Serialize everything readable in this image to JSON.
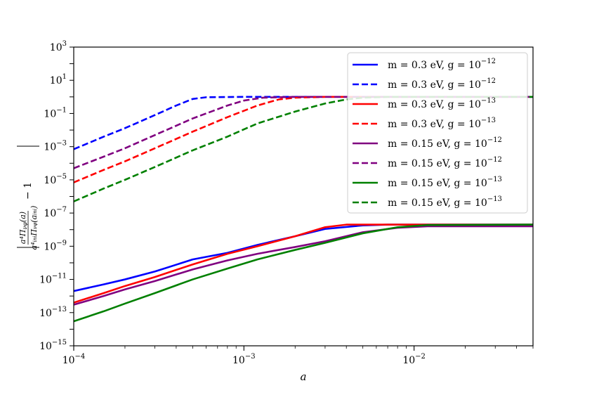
{
  "chart_data": {
    "type": "line",
    "xscale": "log",
    "yscale": "log",
    "xlim": [
      0.0001,
      0.05
    ],
    "ylim": [
      1e-15,
      1000
    ],
    "xlabel": "a",
    "ylabel": "|a⁴Π_νφ(a) / (a⁴_ini Π_νφ(a_ini)) − 1|",
    "x_ticks": [
      {
        "value": 0.0001,
        "base": "10",
        "exp": "−4"
      },
      {
        "value": 0.001,
        "base": "10",
        "exp": "−3"
      },
      {
        "value": 0.01,
        "base": "10",
        "exp": "−2"
      }
    ],
    "y_ticks": [
      {
        "value": 1e-15,
        "base": "10",
        "exp": "−15"
      },
      {
        "value": 1e-13,
        "base": "10",
        "exp": "−13"
      },
      {
        "value": 1e-11,
        "base": "10",
        "exp": "−11"
      },
      {
        "value": 1e-09,
        "base": "10",
        "exp": "−9"
      },
      {
        "value": 1e-07,
        "base": "10",
        "exp": "−7"
      },
      {
        "value": 1e-05,
        "base": "10",
        "exp": "−5"
      },
      {
        "value": 0.001,
        "base": "10",
        "exp": "−3"
      },
      {
        "value": 0.1,
        "base": "10",
        "exp": "−1"
      },
      {
        "value": 10,
        "base": "10",
        "exp": "1"
      },
      {
        "value": 1000,
        "base": "10",
        "exp": "3"
      }
    ],
    "legend_position": "top-right",
    "grid": false,
    "series": [
      {
        "name": "m = 0.3 eV, g = 10^−12",
        "m_label": "m = 0.3 eV, ",
        "g_label": "g = 10",
        "g_exp": "−12",
        "color": "#0000ff",
        "dash": "solid",
        "points": [
          [
            0.0001,
            2e-12
          ],
          [
            0.00015,
            5e-12
          ],
          [
            0.0002,
            1e-11
          ],
          [
            0.0003,
            3e-11
          ],
          [
            0.0005,
            1.6e-10
          ],
          [
            0.0008,
            4e-10
          ],
          [
            0.0012,
            1.2e-09
          ],
          [
            0.002,
            4e-09
          ],
          [
            0.003,
            1.1e-08
          ],
          [
            0.005,
            1.8e-08
          ],
          [
            0.007,
            2e-08
          ],
          [
            0.01,
            2e-08
          ],
          [
            0.05,
            2e-08
          ]
        ]
      },
      {
        "name": "m = 0.3 eV, g = 10^−12",
        "m_label": "m = 0.3 eV, ",
        "g_label": "g = 10",
        "g_exp": "−12",
        "color": "#0000ff",
        "dash": "dashed",
        "points": [
          [
            0.0001,
            0.0007
          ],
          [
            0.00015,
            0.004
          ],
          [
            0.0002,
            0.013
          ],
          [
            0.0003,
            0.08
          ],
          [
            0.0004,
            0.3
          ],
          [
            0.0005,
            0.75
          ],
          [
            0.0006,
            0.95
          ],
          [
            0.001,
            1
          ],
          [
            0.05,
            1
          ]
        ]
      },
      {
        "name": "m = 0.3 eV, g = 10^−13",
        "m_label": "m = 0.3 eV, ",
        "g_label": "g = 10",
        "g_exp": "−13",
        "color": "#ff0000",
        "dash": "solid",
        "points": [
          [
            0.0001,
            4e-13
          ],
          [
            0.00015,
            1.5e-12
          ],
          [
            0.0002,
            4e-12
          ],
          [
            0.0003,
            1.4e-11
          ],
          [
            0.0005,
            8e-11
          ],
          [
            0.0008,
            3.5e-10
          ],
          [
            0.0012,
            1e-09
          ],
          [
            0.002,
            4e-09
          ],
          [
            0.003,
            1.4e-08
          ],
          [
            0.004,
            2e-08
          ],
          [
            0.01,
            2e-08
          ],
          [
            0.05,
            2e-08
          ]
        ]
      },
      {
        "name": "m = 0.3 eV, g = 10^−13",
        "m_label": "m = 0.3 eV, ",
        "g_label": "g = 10",
        "g_exp": "−13",
        "color": "#ff0000",
        "dash": "dashed",
        "points": [
          [
            0.0001,
            7e-06
          ],
          [
            0.00015,
            4e-05
          ],
          [
            0.0002,
            0.00013
          ],
          [
            0.0003,
            0.0008
          ],
          [
            0.0005,
            0.008
          ],
          [
            0.0008,
            0.06
          ],
          [
            0.0012,
            0.3
          ],
          [
            0.0016,
            0.7
          ],
          [
            0.002,
            0.9
          ],
          [
            0.003,
            1
          ],
          [
            0.05,
            1
          ]
        ]
      },
      {
        "name": "m = 0.15 eV, g = 10^−12",
        "m_label": "m = 0.15 eV, ",
        "g_label": "g = 10",
        "g_exp": "−12",
        "color": "#800080",
        "dash": "solid",
        "points": [
          [
            0.0001,
            3e-13
          ],
          [
            0.00015,
            1e-12
          ],
          [
            0.0002,
            2.5e-12
          ],
          [
            0.0003,
            8e-12
          ],
          [
            0.0005,
            4e-11
          ],
          [
            0.0008,
            1.4e-10
          ],
          [
            0.0012,
            3.5e-10
          ],
          [
            0.002,
            9e-10
          ],
          [
            0.003,
            2e-09
          ],
          [
            0.005,
            7e-09
          ],
          [
            0.008,
            1.3e-08
          ],
          [
            0.012,
            1.6e-08
          ],
          [
            0.05,
            1.6e-08
          ]
        ]
      },
      {
        "name": "m = 0.15 eV, g = 10^−12",
        "m_label": "m = 0.15 eV, ",
        "g_label": "g = 10",
        "g_exp": "−12",
        "color": "#800080",
        "dash": "dashed",
        "points": [
          [
            0.0001,
            5e-05
          ],
          [
            0.00015,
            0.00025
          ],
          [
            0.0002,
            0.0008
          ],
          [
            0.0003,
            0.005
          ],
          [
            0.0005,
            0.05
          ],
          [
            0.0008,
            0.3
          ],
          [
            0.001,
            0.6
          ],
          [
            0.0013,
            0.9
          ],
          [
            0.002,
            1
          ],
          [
            0.05,
            1
          ]
        ]
      },
      {
        "name": "m = 0.15 eV, g = 10^−13",
        "m_label": "m = 0.15 eV, ",
        "g_label": "g = 10",
        "g_exp": "−13",
        "color": "#008000",
        "dash": "solid",
        "points": [
          [
            0.0001,
            3e-14
          ],
          [
            0.00015,
            1.2e-13
          ],
          [
            0.0002,
            3.5e-13
          ],
          [
            0.0003,
            1.5e-12
          ],
          [
            0.0005,
            1e-11
          ],
          [
            0.0008,
            4.5e-11
          ],
          [
            0.0012,
            1.6e-10
          ],
          [
            0.002,
            6e-10
          ],
          [
            0.003,
            1.6e-09
          ],
          [
            0.005,
            6e-09
          ],
          [
            0.008,
            1.4e-08
          ],
          [
            0.012,
            1.9e-08
          ],
          [
            0.05,
            2e-08
          ]
        ]
      },
      {
        "name": "m = 0.15 eV, g = 10^−13",
        "m_label": "m = 0.15 eV, ",
        "g_label": "g = 10",
        "g_exp": "−13",
        "color": "#008000",
        "dash": "dashed",
        "points": [
          [
            0.0001,
            5e-07
          ],
          [
            0.00015,
            3e-06
          ],
          [
            0.0002,
            1e-05
          ],
          [
            0.0003,
            6e-05
          ],
          [
            0.0005,
            0.0006
          ],
          [
            0.0008,
            0.004
          ],
          [
            0.0012,
            0.025
          ],
          [
            0.002,
            0.13
          ],
          [
            0.003,
            0.4
          ],
          [
            0.004,
            0.7
          ],
          [
            0.005,
            0.9
          ],
          [
            0.007,
            1
          ],
          [
            0.05,
            1
          ]
        ]
      }
    ]
  }
}
